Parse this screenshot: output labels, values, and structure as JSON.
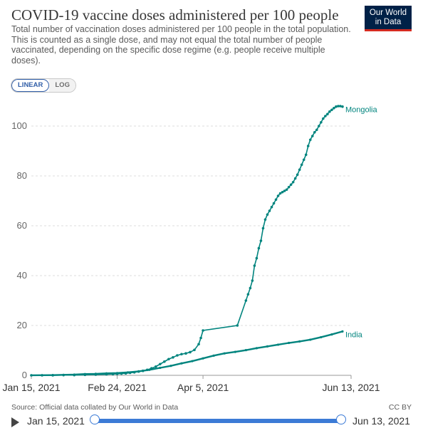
{
  "header": {
    "title": "COVID-19 vaccine doses administered per 100 people",
    "subtitle": "Total number of vaccination doses administered per 100 people in the total population. This is counted as a single dose, and may not equal the total number of people vaccinated, depending on the specific dose regime (e.g. people receive multiple doses).",
    "logo_line1": "Our World",
    "logo_line2": "in Data"
  },
  "controls": {
    "linear_label": "LINEAR",
    "log_label": "LOG",
    "active_scale": "linear"
  },
  "footer": {
    "source": "Source: Official data collated by Our World in Data",
    "license": "CC BY"
  },
  "timeline": {
    "start_label": "Jan 15, 2021",
    "end_label": "Jun 13, 2021"
  },
  "colors": {
    "mongolia": "#00847e",
    "india": "#00847e",
    "grid": "#dddddd",
    "slider": "#3c7bd6"
  },
  "chart_data": {
    "type": "line",
    "title": "COVID-19 vaccine doses administered per 100 people",
    "x_ticks": [
      "Jan 15, 2021",
      "Feb 24, 2021",
      "Apr 5, 2021",
      "Jun 13, 2021"
    ],
    "x_tick_days": [
      0,
      40,
      80,
      149
    ],
    "xlim": [
      0,
      149
    ],
    "y_ticks": [
      0,
      20,
      40,
      60,
      80,
      100
    ],
    "ylim": [
      0,
      110
    ],
    "grid": true,
    "series": [
      {
        "name": "Mongolia",
        "points": [
          [
            0,
            0
          ],
          [
            5,
            0
          ],
          [
            10,
            0
          ],
          [
            15,
            0.1
          ],
          [
            20,
            0.1
          ],
          [
            25,
            0.2
          ],
          [
            30,
            0.3
          ],
          [
            35,
            0.4
          ],
          [
            38,
            0.5
          ],
          [
            40,
            0.6
          ],
          [
            42,
            0.7
          ],
          [
            44,
            0.8
          ],
          [
            46,
            1.0
          ],
          [
            48,
            1.2
          ],
          [
            50,
            1.5
          ],
          [
            52,
            1.8
          ],
          [
            54,
            2.2
          ],
          [
            56,
            2.8
          ],
          [
            58,
            3.5
          ],
          [
            60,
            4.5
          ],
          [
            62,
            5.5
          ],
          [
            64,
            6.5
          ],
          [
            66,
            7.2
          ],
          [
            68,
            8.0
          ],
          [
            70,
            8.5
          ],
          [
            72,
            8.8
          ],
          [
            74,
            9.3
          ],
          [
            76,
            10.2
          ],
          [
            78,
            12.5
          ],
          [
            79,
            15.0
          ],
          [
            80,
            18.0
          ],
          [
            96,
            20.0
          ],
          [
            100,
            30.0
          ],
          [
            101,
            32.5
          ],
          [
            102,
            35.0
          ],
          [
            103,
            38.0
          ],
          [
            104,
            44.0
          ],
          [
            105,
            47.0
          ],
          [
            106,
            51.0
          ],
          [
            107,
            54.0
          ],
          [
            108,
            59.0
          ],
          [
            109,
            62.5
          ],
          [
            110,
            64.5
          ],
          [
            111,
            66.0
          ],
          [
            112,
            67.5
          ],
          [
            113,
            69.0
          ],
          [
            114,
            70.5
          ],
          [
            115,
            72.0
          ],
          [
            116,
            73.0
          ],
          [
            117,
            73.5
          ],
          [
            118,
            74.0
          ],
          [
            119,
            74.5
          ],
          [
            120,
            75.5
          ],
          [
            121,
            76.5
          ],
          [
            122,
            77.5
          ],
          [
            123,
            79.0
          ],
          [
            124,
            80.5
          ],
          [
            125,
            82.5
          ],
          [
            126,
            84.5
          ],
          [
            127,
            86.5
          ],
          [
            128,
            88.5
          ],
          [
            129,
            92.0
          ],
          [
            130,
            94.5
          ],
          [
            131,
            96.0
          ],
          [
            132,
            97.5
          ],
          [
            133,
            98.5
          ],
          [
            134,
            100.0
          ],
          [
            135,
            101.5
          ],
          [
            136,
            103.0
          ],
          [
            137,
            104.0
          ],
          [
            138,
            104.8
          ],
          [
            139,
            105.8
          ],
          [
            140,
            106.5
          ],
          [
            141,
            107.2
          ],
          [
            142,
            107.8
          ],
          [
            143,
            108.0
          ],
          [
            144,
            108.0
          ],
          [
            145,
            107.8
          ]
        ]
      },
      {
        "name": "India",
        "points": [
          [
            0,
            0.02
          ],
          [
            5,
            0.05
          ],
          [
            10,
            0.1
          ],
          [
            15,
            0.2
          ],
          [
            20,
            0.3
          ],
          [
            25,
            0.5
          ],
          [
            30,
            0.6
          ],
          [
            35,
            0.8
          ],
          [
            40,
            0.9
          ],
          [
            45,
            1.2
          ],
          [
            50,
            1.6
          ],
          [
            55,
            2.2
          ],
          [
            60,
            3.0
          ],
          [
            65,
            3.8
          ],
          [
            70,
            4.8
          ],
          [
            75,
            5.7
          ],
          [
            80,
            6.8
          ],
          [
            85,
            7.9
          ],
          [
            90,
            8.8
          ],
          [
            95,
            9.4
          ],
          [
            100,
            10.1
          ],
          [
            105,
            10.9
          ],
          [
            110,
            11.6
          ],
          [
            115,
            12.3
          ],
          [
            120,
            13.0
          ],
          [
            125,
            13.6
          ],
          [
            130,
            14.3
          ],
          [
            135,
            15.3
          ],
          [
            140,
            16.4
          ],
          [
            145,
            17.6
          ]
        ]
      }
    ]
  }
}
